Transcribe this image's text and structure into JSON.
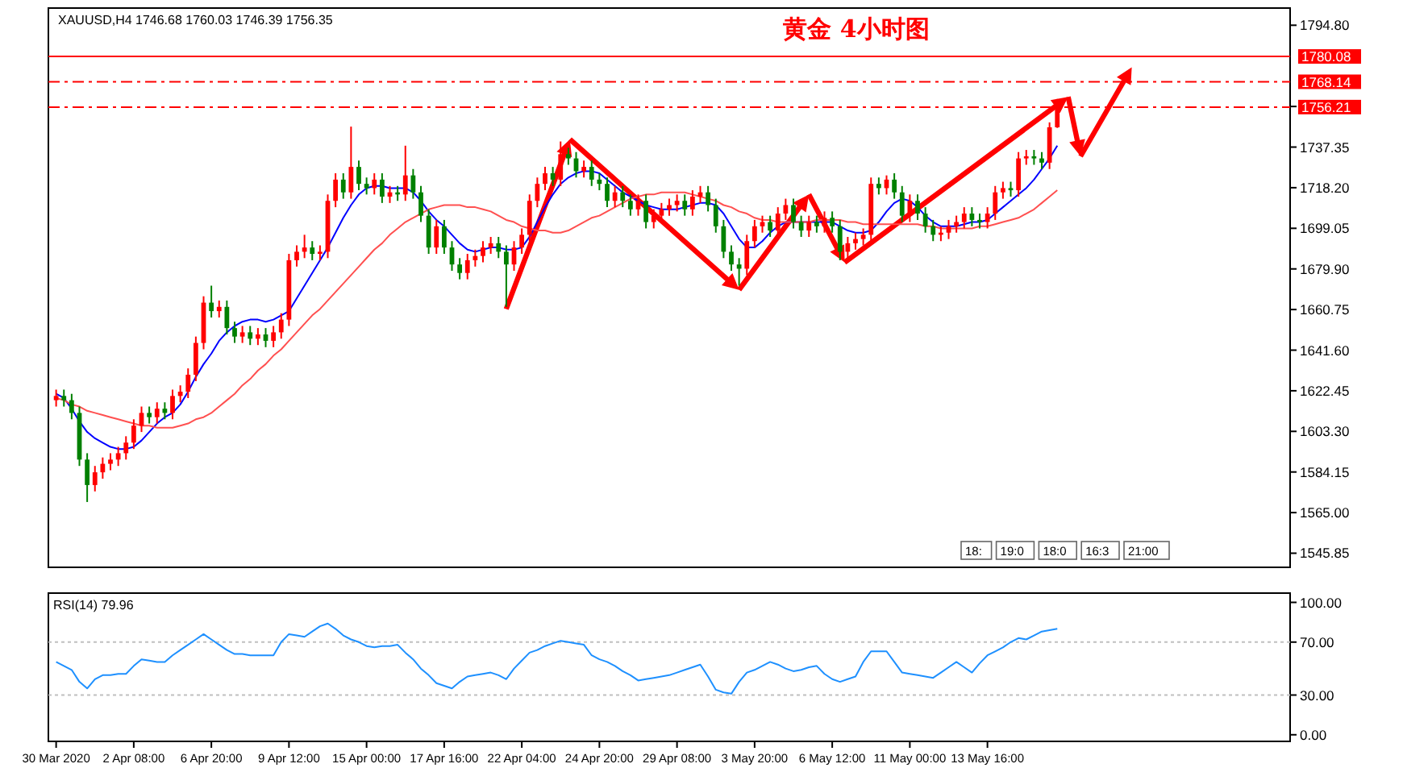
{
  "chart_data": [
    {
      "type": "candlestick",
      "title": "黄金 4小时图",
      "subtitle": "XAUUSD,H4  1746.68 1760.03 1746.39 1756.35",
      "annotations": [
        "18:",
        "19:0",
        "18:0",
        "16:3",
        "21:00"
      ],
      "categories": [
        null,
        null,
        null,
        null,
        null,
        null,
        null,
        null,
        null,
        null,
        null,
        null,
        null,
        null,
        null,
        null,
        null,
        null,
        null,
        null,
        null,
        null,
        null,
        null,
        null,
        null,
        null,
        null,
        null,
        null,
        null,
        null,
        null,
        null,
        null,
        null,
        null,
        null,
        null,
        null,
        null,
        null,
        null,
        null,
        null,
        null,
        null,
        null,
        null,
        null,
        null,
        null,
        null,
        null,
        null,
        null,
        null,
        null,
        null,
        null,
        null,
        null,
        null,
        null,
        null,
        null,
        null,
        null,
        null,
        null,
        null,
        null,
        null,
        null,
        null,
        null,
        null,
        null,
        null,
        null,
        null,
        null,
        null,
        null,
        null,
        null,
        null,
        null,
        null,
        null,
        null,
        null,
        null,
        null,
        null,
        null,
        null,
        null,
        null,
        null,
        null,
        null,
        null,
        null,
        null,
        null,
        null,
        null,
        null,
        null,
        null,
        null,
        null,
        null,
        null,
        null,
        null,
        null,
        null,
        null,
        null,
        null,
        null,
        null,
        null,
        null,
        null,
        null,
        null,
        null
      ],
      "ohlc": [
        [
          1618,
          1623,
          1615,
          1620
        ],
        [
          1620,
          1623,
          1615,
          1618
        ],
        [
          1618,
          1621,
          1609,
          1612
        ],
        [
          1612,
          1615,
          1587,
          1590
        ],
        [
          1590,
          1593,
          1570,
          1578
        ],
        [
          1578,
          1587,
          1575,
          1584
        ],
        [
          1584,
          1591,
          1581,
          1588
        ],
        [
          1588,
          1593,
          1585,
          1590
        ],
        [
          1590,
          1596,
          1587,
          1593
        ],
        [
          1593,
          1601,
          1590,
          1598
        ],
        [
          1598,
          1609,
          1595,
          1606
        ],
        [
          1606,
          1615,
          1603,
          1612
        ],
        [
          1612,
          1615,
          1607,
          1610
        ],
        [
          1610,
          1617,
          1607,
          1614
        ],
        [
          1614,
          1617,
          1609,
          1612
        ],
        [
          1612,
          1623,
          1609,
          1620
        ],
        [
          1620,
          1625,
          1617,
          1622
        ],
        [
          1622,
          1633,
          1619,
          1630
        ],
        [
          1630,
          1648,
          1627,
          1645
        ],
        [
          1645,
          1667,
          1642,
          1664
        ],
        [
          1664,
          1672,
          1657,
          1660
        ],
        [
          1660,
          1665,
          1657,
          1662
        ],
        [
          1662,
          1665,
          1649,
          1652
        ],
        [
          1652,
          1655,
          1645,
          1648
        ],
        [
          1648,
          1653,
          1645,
          1650
        ],
        [
          1650,
          1653,
          1644,
          1647
        ],
        [
          1647,
          1652,
          1644,
          1649
        ],
        [
          1649,
          1652,
          1643,
          1646
        ],
        [
          1646,
          1653,
          1643,
          1650
        ],
        [
          1650,
          1659,
          1647,
          1656
        ],
        [
          1656,
          1687,
          1653,
          1684
        ],
        [
          1684,
          1691,
          1681,
          1688
        ],
        [
          1688,
          1696,
          1685,
          1690
        ],
        [
          1690,
          1693,
          1684,
          1687
        ],
        [
          1687,
          1691,
          1684,
          1688
        ],
        [
          1688,
          1715,
          1685,
          1712
        ],
        [
          1712,
          1725,
          1709,
          1722
        ],
        [
          1722,
          1725,
          1713,
          1716
        ],
        [
          1716,
          1747,
          1713,
          1728
        ],
        [
          1728,
          1731,
          1717,
          1720
        ],
        [
          1720,
          1723,
          1715,
          1718
        ],
        [
          1718,
          1725,
          1715,
          1722
        ],
        [
          1722,
          1725,
          1711,
          1714
        ],
        [
          1714,
          1719,
          1711,
          1716
        ],
        [
          1716,
          1719,
          1712,
          1715
        ],
        [
          1715,
          1738,
          1712,
          1724
        ],
        [
          1724,
          1727,
          1713,
          1716
        ],
        [
          1716,
          1719,
          1702,
          1705
        ],
        [
          1705,
          1708,
          1687,
          1690
        ],
        [
          1690,
          1703,
          1687,
          1700
        ],
        [
          1700,
          1703,
          1687,
          1690
        ],
        [
          1690,
          1693,
          1679,
          1682
        ],
        [
          1682,
          1685,
          1675,
          1678
        ],
        [
          1678,
          1687,
          1675,
          1684
        ],
        [
          1684,
          1689,
          1681,
          1686
        ],
        [
          1686,
          1693,
          1683,
          1690
        ],
        [
          1690,
          1695,
          1687,
          1692
        ],
        [
          1692,
          1695,
          1685,
          1688
        ],
        [
          1688,
          1691,
          1662,
          1682
        ],
        [
          1682,
          1693,
          1679,
          1690
        ],
        [
          1690,
          1699,
          1687,
          1696
        ],
        [
          1696,
          1715,
          1693,
          1712
        ],
        [
          1712,
          1723,
          1709,
          1720
        ],
        [
          1720,
          1728,
          1717,
          1725
        ],
        [
          1725,
          1728,
          1719,
          1722
        ],
        [
          1722,
          1740,
          1719,
          1734
        ],
        [
          1734,
          1737,
          1729,
          1732
        ],
        [
          1732,
          1735,
          1723,
          1726
        ],
        [
          1726,
          1731,
          1723,
          1728
        ],
        [
          1728,
          1731,
          1719,
          1722
        ],
        [
          1722,
          1725,
          1717,
          1720
        ],
        [
          1720,
          1723,
          1709,
          1712
        ],
        [
          1712,
          1719,
          1709,
          1716
        ],
        [
          1716,
          1719,
          1709,
          1712
        ],
        [
          1712,
          1715,
          1705,
          1708
        ],
        [
          1708,
          1715,
          1705,
          1712
        ],
        [
          1712,
          1715,
          1699,
          1702
        ],
        [
          1702,
          1708,
          1699,
          1705
        ],
        [
          1705,
          1711,
          1702,
          1708
        ],
        [
          1708,
          1713,
          1705,
          1710
        ],
        [
          1710,
          1715,
          1707,
          1712
        ],
        [
          1712,
          1715,
          1705,
          1708
        ],
        [
          1708,
          1717,
          1705,
          1714
        ],
        [
          1714,
          1719,
          1711,
          1716
        ],
        [
          1716,
          1719,
          1707,
          1710
        ],
        [
          1710,
          1713,
          1697,
          1700
        ],
        [
          1700,
          1703,
          1685,
          1688
        ],
        [
          1688,
          1691,
          1679,
          1682
        ],
        [
          1682,
          1685,
          1672,
          1680
        ],
        [
          1680,
          1696,
          1677,
          1693
        ],
        [
          1693,
          1703,
          1690,
          1700
        ],
        [
          1700,
          1705,
          1697,
          1702
        ],
        [
          1702,
          1705,
          1695,
          1698
        ],
        [
          1698,
          1709,
          1695,
          1706
        ],
        [
          1706,
          1713,
          1703,
          1710
        ],
        [
          1710,
          1713,
          1699,
          1702
        ],
        [
          1702,
          1705,
          1695,
          1698
        ],
        [
          1698,
          1705,
          1695,
          1702
        ],
        [
          1702,
          1705,
          1697,
          1700
        ],
        [
          1700,
          1707,
          1697,
          1704
        ],
        [
          1704,
          1707,
          1697,
          1700
        ],
        [
          1700,
          1703,
          1684,
          1688
        ],
        [
          1688,
          1695,
          1685,
          1692
        ],
        [
          1692,
          1697,
          1689,
          1694
        ],
        [
          1694,
          1699,
          1691,
          1696
        ],
        [
          1696,
          1723,
          1693,
          1720
        ],
        [
          1720,
          1723,
          1715,
          1718
        ],
        [
          1718,
          1724,
          1715,
          1722
        ],
        [
          1722,
          1725,
          1713,
          1716
        ],
        [
          1716,
          1719,
          1702,
          1705
        ],
        [
          1705,
          1715,
          1702,
          1712
        ],
        [
          1712,
          1715,
          1703,
          1706
        ],
        [
          1706,
          1709,
          1697,
          1700
        ],
        [
          1700,
          1703,
          1693,
          1696
        ],
        [
          1696,
          1700,
          1693,
          1697
        ],
        [
          1697,
          1703,
          1694,
          1700
        ],
        [
          1700,
          1705,
          1697,
          1702
        ],
        [
          1702,
          1709,
          1699,
          1706
        ],
        [
          1706,
          1709,
          1700,
          1703
        ],
        [
          1703,
          1706,
          1699,
          1702
        ],
        [
          1702,
          1709,
          1699,
          1706
        ],
        [
          1706,
          1719,
          1703,
          1716
        ],
        [
          1716,
          1721,
          1713,
          1718
        ],
        [
          1718,
          1721,
          1714,
          1717
        ],
        [
          1717,
          1735,
          1714,
          1732
        ],
        [
          1732,
          1736,
          1729,
          1733
        ],
        [
          1733,
          1736,
          1729,
          1732
        ],
        [
          1732,
          1735,
          1727,
          1730
        ],
        [
          1730,
          1749,
          1727,
          1746.68
        ],
        [
          1746.68,
          1760.03,
          1746.39,
          1756.35
        ]
      ],
      "colors": [
        "#ff0000",
        "#008000",
        "#008000",
        "#008000",
        "#008000",
        "#ff0000",
        "#ff0000",
        "#ff0000",
        "#ff0000",
        "#ff0000",
        "#ff0000",
        "#ff0000",
        "#008000",
        "#ff0000",
        "#008000",
        "#ff0000",
        "#ff0000",
        "#ff0000",
        "#ff0000",
        "#ff0000",
        "#008000",
        "#ff0000",
        "#008000",
        "#008000",
        "#ff0000",
        "#008000",
        "#ff0000",
        "#008000",
        "#ff0000",
        "#ff0000",
        "#ff0000",
        "#ff0000",
        "#ff0000",
        "#008000",
        "#ff0000",
        "#ff0000",
        "#ff0000",
        "#008000",
        "#ff0000",
        "#008000",
        "#008000",
        "#ff0000",
        "#008000",
        "#ff0000",
        "#008000",
        "#ff0000",
        "#008000",
        "#008000",
        "#008000",
        "#ff0000",
        "#008000",
        "#008000",
        "#008000",
        "#ff0000",
        "#ff0000",
        "#ff0000",
        "#ff0000",
        "#008000",
        "#008000",
        "#ff0000",
        "#ff0000",
        "#ff0000",
        "#ff0000",
        "#ff0000",
        "#008000",
        "#ff0000",
        "#008000",
        "#008000",
        "#ff0000",
        "#008000",
        "#008000",
        "#008000",
        "#ff0000",
        "#008000",
        "#008000",
        "#ff0000",
        "#008000",
        "#ff0000",
        "#ff0000",
        "#ff0000",
        "#ff0000",
        "#008000",
        "#ff0000",
        "#ff0000",
        "#008000",
        "#008000",
        "#008000",
        "#008000",
        "#008000",
        "#ff0000",
        "#ff0000",
        "#ff0000",
        "#008000",
        "#ff0000",
        "#ff0000",
        "#008000",
        "#008000",
        "#ff0000",
        "#008000",
        "#ff0000",
        "#008000",
        "#008000",
        "#ff0000",
        "#ff0000",
        "#ff0000",
        "#ff0000",
        "#008000",
        "#ff0000",
        "#008000",
        "#008000",
        "#ff0000",
        "#008000",
        "#008000",
        "#008000",
        "#ff0000",
        "#ff0000",
        "#ff0000",
        "#ff0000",
        "#008000",
        "#008000",
        "#ff0000",
        "#ff0000",
        "#ff0000",
        "#008000",
        "#ff0000",
        "#ff0000",
        "#008000",
        "#008000",
        "#ff0000",
        "#ff0000"
      ],
      "series": [
        {
          "type": "line",
          "color": "#0000ff",
          "values": [
            1621,
            1619,
            1614,
            1608,
            1603,
            1600,
            1598,
            1596,
            1595,
            1595,
            1596,
            1599,
            1603,
            1607,
            1610,
            1612,
            1616,
            1622,
            1629,
            1635,
            1640,
            1646,
            1650,
            1653,
            1655,
            1656,
            1656,
            1655,
            1656,
            1658,
            1660,
            1666,
            1672,
            1678,
            1684,
            1690,
            1697,
            1704,
            1710,
            1715,
            1718,
            1719,
            1719,
            1718,
            1718,
            1718,
            1716,
            1712,
            1707,
            1703,
            1700,
            1696,
            1692,
            1689,
            1688,
            1689,
            1690,
            1690,
            1689,
            1689,
            1690,
            1695,
            1702,
            1709,
            1715,
            1720,
            1723,
            1725,
            1726,
            1726,
            1725,
            1722,
            1719,
            1716,
            1714,
            1712,
            1710,
            1709,
            1708,
            1708,
            1708,
            1709,
            1710,
            1711,
            1711,
            1710,
            1706,
            1700,
            1694,
            1690,
            1690,
            1693,
            1697,
            1700,
            1702,
            1702,
            1702,
            1702,
            1702,
            1702,
            1702,
            1700,
            1698,
            1697,
            1697,
            1698,
            1702,
            1707,
            1711,
            1713,
            1712,
            1709,
            1705,
            1702,
            1700,
            1700,
            1700,
            1701,
            1702,
            1702,
            1703,
            1706,
            1709,
            1712,
            1715,
            1718,
            1722,
            1727,
            1732,
            1738
          ]
        },
        {
          "type": "line",
          "color": "#ff5050",
          "values": [
            1619,
            1618,
            1616,
            1615,
            1613,
            1612,
            1611,
            1610,
            1609,
            1608,
            1607,
            1606,
            1606,
            1605,
            1605,
            1605,
            1606,
            1607,
            1609,
            1610,
            1612,
            1615,
            1618,
            1621,
            1625,
            1628,
            1632,
            1635,
            1639,
            1642,
            1646,
            1650,
            1654,
            1658,
            1661,
            1665,
            1669,
            1673,
            1677,
            1681,
            1685,
            1689,
            1692,
            1696,
            1699,
            1702,
            1704,
            1706,
            1708,
            1709,
            1710,
            1710,
            1710,
            1709,
            1709,
            1708,
            1707,
            1705,
            1703,
            1702,
            1700,
            1699,
            1698,
            1698,
            1697,
            1697,
            1698,
            1700,
            1702,
            1704,
            1705,
            1707,
            1709,
            1711,
            1713,
            1714,
            1715,
            1715,
            1716,
            1716,
            1716,
            1716,
            1715,
            1714,
            1713,
            1712,
            1710,
            1709,
            1707,
            1706,
            1704,
            1703,
            1703,
            1702,
            1702,
            1702,
            1702,
            1702,
            1703,
            1703,
            1703,
            1703,
            1702,
            1702,
            1701,
            1701,
            1701,
            1701,
            1701,
            1701,
            1701,
            1701,
            1700,
            1700,
            1699,
            1699,
            1699,
            1699,
            1699,
            1700,
            1700,
            1701,
            1702,
            1703,
            1704,
            1706,
            1708,
            1711,
            1714,
            1717
          ]
        }
      ],
      "ylim": [
        1539.2,
        1802.9
      ],
      "yticks": [
        {
          "value": 1545.85,
          "label": "1545.85"
        },
        {
          "value": 1565,
          "label": "1565.00"
        },
        {
          "value": 1584.15,
          "label": "1584.15"
        },
        {
          "value": 1603.3,
          "label": "1603.30"
        },
        {
          "value": 1622.45,
          "label": "1622.45"
        },
        {
          "value": 1641.6,
          "label": "1641.60"
        },
        {
          "value": 1660.75,
          "label": "1660.75"
        },
        {
          "value": 1679.9,
          "label": "1679.90"
        },
        {
          "value": 1699.05,
          "label": "1699.05"
        },
        {
          "value": 1718.2,
          "label": "1718.20"
        },
        {
          "value": 1737.35,
          "label": "1737.35"
        },
        {
          "value": 1756.5,
          "label": null
        },
        {
          "value": 1794.8,
          "label": "1794.80"
        }
      ],
      "ref_lines": [
        {
          "axis": "y",
          "value": 1780.08,
          "label": "1780.08",
          "color": "#ff0000",
          "line_style": "solid"
        },
        {
          "axis": "y",
          "value": 1768.14,
          "label": "1768.14",
          "color": "#ff0000",
          "line_style": "dashed"
        },
        {
          "axis": "y",
          "value": 1756.21,
          "label": "1756.21",
          "color": "#ff0000",
          "line_style": "dashed"
        }
      ],
      "tick_labels": "y"
    },
    {
      "type": "line",
      "title": "RSI(14) 79.96",
      "categories": [
        "30 Mar 2020",
        null,
        null,
        null,
        null,
        null,
        null,
        null,
        null,
        null,
        "2 Apr 08:00",
        null,
        null,
        null,
        null,
        null,
        null,
        null,
        null,
        null,
        "6 Apr 20:00",
        null,
        null,
        null,
        null,
        null,
        null,
        null,
        null,
        null,
        "9 Apr 12:00",
        null,
        null,
        null,
        null,
        null,
        null,
        null,
        null,
        null,
        "15 Apr 00:00",
        null,
        null,
        null,
        null,
        null,
        null,
        null,
        null,
        null,
        "17 Apr 16:00",
        null,
        null,
        null,
        null,
        null,
        null,
        null,
        null,
        null,
        "22 Apr 04:00",
        null,
        null,
        null,
        null,
        null,
        null,
        null,
        null,
        null,
        "24 Apr 20:00",
        null,
        null,
        null,
        null,
        null,
        null,
        null,
        null,
        null,
        "29 Apr 08:00",
        null,
        null,
        null,
        null,
        null,
        null,
        null,
        null,
        null,
        "3 May 20:00",
        null,
        null,
        null,
        null,
        null,
        null,
        null,
        null,
        null,
        "6 May 12:00",
        null,
        null,
        null,
        null,
        null,
        null,
        null,
        null,
        null,
        "11 May 00:00",
        null,
        null,
        null,
        null,
        null,
        null,
        null,
        null,
        null,
        "13 May 16:00",
        null,
        null,
        null,
        null,
        null,
        null,
        null,
        null,
        null
      ],
      "series": [
        {
          "color": "#1e90ff",
          "values": [
            55,
            52,
            49,
            40,
            35,
            42,
            45,
            45,
            46,
            46,
            52,
            57,
            56,
            55,
            55,
            60,
            64,
            68,
            72,
            76,
            72,
            68,
            64,
            61,
            61,
            60,
            60,
            60,
            60,
            70,
            76,
            75,
            74,
            78,
            82,
            84,
            80,
            75,
            72,
            70,
            67,
            66,
            67,
            67,
            68,
            62,
            57,
            50,
            45,
            39,
            37,
            35,
            40,
            44,
            45,
            46,
            47,
            45,
            42,
            50,
            56,
            62,
            64,
            67,
            69,
            71,
            70,
            69,
            68,
            60,
            57,
            55,
            52,
            48,
            45,
            41,
            42,
            43,
            44,
            45,
            47,
            49,
            51,
            53,
            44,
            34,
            32,
            31,
            40,
            47,
            49,
            52,
            55,
            53,
            50,
            48,
            49,
            51,
            52,
            46,
            42,
            40,
            42,
            44,
            55,
            63,
            63,
            63,
            55,
            47,
            46,
            45,
            44,
            43,
            47,
            51,
            55,
            51,
            47,
            54,
            60,
            63,
            66,
            70,
            73,
            72,
            75,
            78,
            79,
            80
          ]
        }
      ],
      "ylim": [
        -5,
        107
      ],
      "yticks": [
        {
          "value": 0,
          "label": "0.00"
        },
        {
          "value": 30,
          "label": "30.00"
        },
        {
          "value": 70,
          "label": "70.00"
        },
        {
          "value": 100,
          "label": "100.00"
        }
      ],
      "ref_lines": [
        {
          "axis": "y",
          "value": 70,
          "color": "#c0c0c0",
          "line_style": "dotted"
        },
        {
          "axis": "y",
          "value": 30,
          "color": "#c0c0c0",
          "line_style": "dotted"
        }
      ]
    }
  ]
}
